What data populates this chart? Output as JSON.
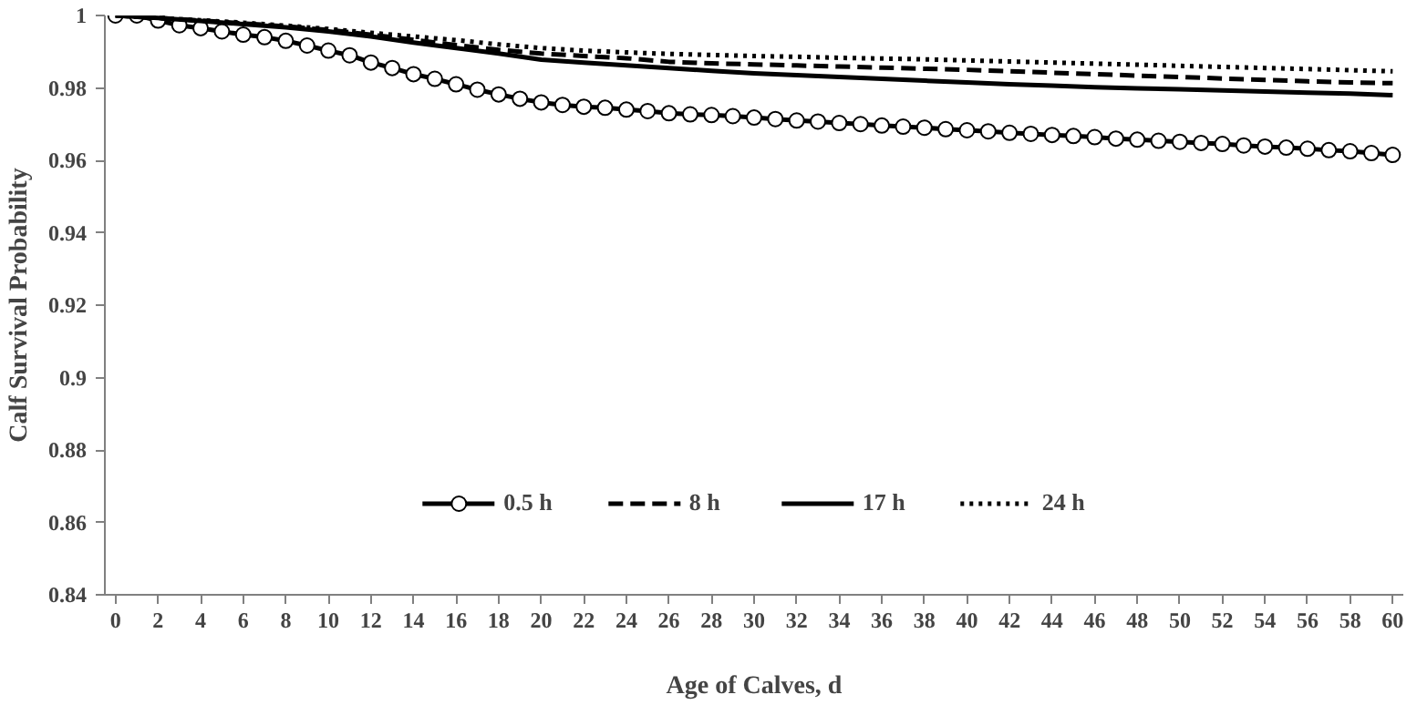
{
  "chart_data": {
    "type": "line",
    "xlabel": "Age of Calves, d",
    "ylabel": "Calf Survival Probability",
    "xlim": [
      -0.5,
      60.5
    ],
    "xticks": [
      0,
      2,
      4,
      6,
      8,
      10,
      12,
      14,
      16,
      18,
      20,
      22,
      24,
      26,
      28,
      30,
      32,
      34,
      36,
      38,
      40,
      42,
      44,
      46,
      48,
      50,
      52,
      54,
      56,
      58,
      60
    ],
    "ylim": [
      0.84,
      1
    ],
    "yticks": [
      0.84,
      0.86,
      0.88,
      0.9,
      0.92,
      0.94,
      0.96,
      0.98,
      1
    ],
    "grid": false,
    "legend": "bottom",
    "series": [
      {
        "name": "0.5 h",
        "color": "#000000",
        "marker": "circle",
        "line_style": "solid",
        "x": [
          0,
          1,
          2,
          3,
          4,
          5,
          6,
          7,
          8,
          9,
          10,
          11,
          12,
          13,
          14,
          15,
          16,
          17,
          18,
          19,
          20,
          21,
          22,
          23,
          24,
          25,
          26,
          27,
          28,
          29,
          30,
          31,
          32,
          33,
          34,
          35,
          36,
          37,
          38,
          39,
          40,
          41,
          42,
          43,
          44,
          45,
          46,
          47,
          48,
          49,
          50,
          51,
          52,
          53,
          54,
          55,
          56,
          57,
          58,
          59,
          60
        ],
        "values": [
          1,
          1,
          0.9986,
          0.9973,
          0.9965,
          0.9956,
          0.9947,
          0.994,
          0.993,
          0.9917,
          0.9903,
          0.989,
          0.987,
          0.9855,
          0.9838,
          0.9825,
          0.981,
          0.9795,
          0.9782,
          0.977,
          0.976,
          0.9753,
          0.9748,
          0.9745,
          0.974,
          0.9736,
          0.973,
          0.9727,
          0.9725,
          0.9722,
          0.9718,
          0.9714,
          0.971,
          0.9707,
          0.9703,
          0.97,
          0.9696,
          0.9693,
          0.969,
          0.9686,
          0.9683,
          0.968,
          0.9676,
          0.9673,
          0.967,
          0.9667,
          0.9664,
          0.966,
          0.9657,
          0.9654,
          0.9651,
          0.9648,
          0.9645,
          0.9641,
          0.9638,
          0.9635,
          0.9632,
          0.9628,
          0.9625,
          0.962,
          0.9615
        ]
      },
      {
        "name": "8 h",
        "color": "#000000",
        "marker": "none",
        "line_style": "dashed",
        "x": [
          0,
          2,
          4,
          6,
          8,
          10,
          12,
          14,
          16,
          18,
          20,
          22,
          24,
          26,
          28,
          30,
          32,
          34,
          36,
          38,
          40,
          42,
          44,
          46,
          48,
          50,
          52,
          54,
          56,
          58,
          60
        ],
        "values": [
          1,
          0.9993,
          0.9986,
          0.9978,
          0.997,
          0.996,
          0.9947,
          0.9933,
          0.9918,
          0.9905,
          0.9895,
          0.9888,
          0.9882,
          0.9872,
          0.9868,
          0.9865,
          0.9862,
          0.9859,
          0.9856,
          0.9853,
          0.985,
          0.9846,
          0.9842,
          0.9838,
          0.9834,
          0.983,
          0.9826,
          0.9822,
          0.9818,
          0.9815,
          0.9813
        ]
      },
      {
        "name": "17 h",
        "color": "#000000",
        "marker": "none",
        "line_style": "solid",
        "x": [
          0,
          2,
          4,
          6,
          8,
          10,
          12,
          14,
          16,
          18,
          20,
          22,
          24,
          26,
          28,
          30,
          32,
          34,
          36,
          38,
          40,
          42,
          44,
          46,
          48,
          50,
          52,
          54,
          56,
          58,
          60
        ],
        "values": [
          1,
          0.9993,
          0.9985,
          0.9976,
          0.9967,
          0.9956,
          0.9942,
          0.9925,
          0.991,
          0.9895,
          0.9878,
          0.987,
          0.9862,
          0.9855,
          0.9847,
          0.984,
          0.9835,
          0.983,
          0.9825,
          0.982,
          0.9815,
          0.981,
          0.9806,
          0.9802,
          0.9799,
          0.9796,
          0.9793,
          0.979,
          0.9787,
          0.9784,
          0.978
        ]
      },
      {
        "name": "24 h",
        "color": "#000000",
        "marker": "none",
        "line_style": "dotted",
        "x": [
          0,
          2,
          4,
          6,
          8,
          10,
          12,
          14,
          16,
          18,
          20,
          22,
          24,
          26,
          28,
          30,
          32,
          34,
          36,
          38,
          40,
          42,
          44,
          46,
          48,
          50,
          52,
          54,
          56,
          58,
          60
        ],
        "values": [
          1,
          0.9993,
          0.9987,
          0.998,
          0.9972,
          0.9963,
          0.9952,
          0.9942,
          0.9932,
          0.992,
          0.991,
          0.9903,
          0.9898,
          0.9894,
          0.9891,
          0.9888,
          0.9886,
          0.9883,
          0.9881,
          0.9879,
          0.9876,
          0.9873,
          0.987,
          0.9867,
          0.9864,
          0.9861,
          0.9858,
          0.9855,
          0.9852,
          0.9849,
          0.9846
        ]
      }
    ]
  }
}
